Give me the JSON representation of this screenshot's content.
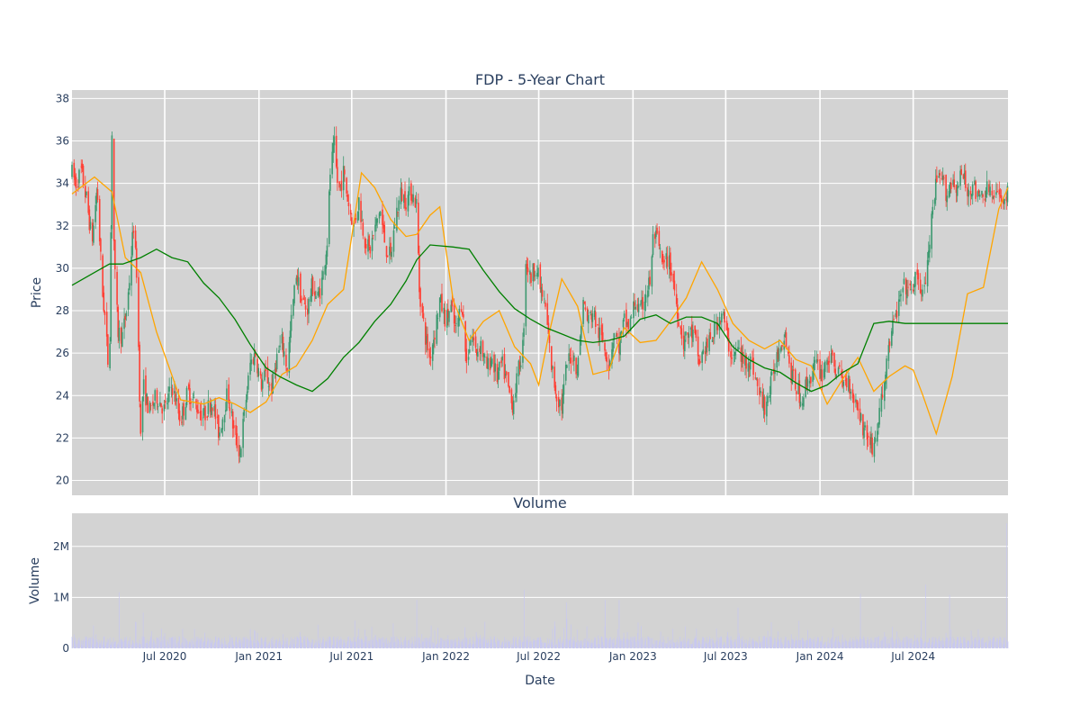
{
  "chart_data": [
    {
      "type": "candlestick",
      "title": "FDP - 5-Year Chart",
      "xlabel": "",
      "ylabel": "Price",
      "x_range": [
        "2020-01-02",
        "2025-01-02"
      ],
      "ylim": [
        19.3,
        38.4
      ],
      "y_ticks": [
        20,
        22,
        24,
        26,
        28,
        30,
        32,
        34,
        36,
        38
      ],
      "grid": true,
      "increasing_color": "#3d9970",
      "decreasing_color": "#ff4136",
      "overlays": [
        {
          "type": "line",
          "color": "#ffa500",
          "x": [
            "2020-01-02",
            "2020-02-15",
            "2020-03-20",
            "2020-04-15",
            "2020-05-15",
            "2020-06-15",
            "2020-08-01",
            "2020-09-15",
            "2020-10-15",
            "2020-11-15",
            "2020-12-15",
            "2021-01-15",
            "2021-02-15",
            "2021-03-15",
            "2021-04-15",
            "2021-05-15",
            "2021-06-15",
            "2021-07-01",
            "2021-07-20",
            "2021-08-15",
            "2021-09-15",
            "2021-10-15",
            "2021-11-05",
            "2021-12-01",
            "2021-12-20",
            "2022-01-15",
            "2022-02-15",
            "2022-03-15",
            "2022-04-15",
            "2022-05-15",
            "2022-06-15",
            "2022-07-01",
            "2022-07-20",
            "2022-08-15",
            "2022-09-15",
            "2022-10-15",
            "2022-11-15",
            "2022-12-15",
            "2023-01-15",
            "2023-02-15",
            "2023-03-15",
            "2023-04-15",
            "2023-05-15",
            "2023-06-15",
            "2023-07-15",
            "2023-08-15",
            "2023-09-15",
            "2023-10-15",
            "2023-11-15",
            "2023-12-15",
            "2024-01-15",
            "2024-02-15",
            "2024-03-15",
            "2024-04-15",
            "2024-05-15",
            "2024-06-15",
            "2024-07-01",
            "2024-07-20",
            "2024-08-15",
            "2024-09-15",
            "2024-10-15",
            "2024-11-15",
            "2024-12-15",
            "2025-01-02"
          ],
          "values": [
            33.5,
            34.3,
            33.6,
            30.5,
            29.8,
            27.0,
            23.8,
            23.6,
            23.9,
            23.6,
            23.2,
            23.7,
            25.0,
            25.4,
            26.6,
            28.3,
            29.0,
            31.5,
            34.5,
            33.8,
            32.3,
            31.5,
            31.6,
            32.5,
            32.9,
            28.5,
            26.6,
            27.5,
            28.0,
            26.3,
            25.5,
            24.5,
            26.8,
            29.5,
            28.2,
            25.0,
            25.2,
            27.2,
            26.5,
            26.6,
            27.5,
            28.6,
            30.3,
            29.0,
            27.4,
            26.6,
            26.2,
            26.6,
            25.7,
            25.4,
            23.6,
            24.8,
            25.8,
            24.2,
            24.9,
            25.4,
            25.2,
            24.0,
            22.2,
            24.9,
            28.8,
            29.1,
            32.8,
            33.8
          ]
        },
        {
          "type": "line",
          "color": "#008000",
          "x": [
            "2020-01-02",
            "2020-02-15",
            "2020-03-15",
            "2020-04-10",
            "2020-05-15",
            "2020-06-15",
            "2020-07-15",
            "2020-08-15",
            "2020-09-15",
            "2020-10-15",
            "2020-11-15",
            "2020-12-15",
            "2021-01-15",
            "2021-02-10",
            "2021-03-15",
            "2021-04-15",
            "2021-05-15",
            "2021-06-15",
            "2021-07-15",
            "2021-08-15",
            "2021-09-15",
            "2021-10-15",
            "2021-11-05",
            "2021-12-01",
            "2022-01-15",
            "2022-02-15",
            "2022-03-15",
            "2022-04-15",
            "2022-05-15",
            "2022-06-15",
            "2022-07-15",
            "2022-08-15",
            "2022-09-15",
            "2022-10-15",
            "2022-11-15",
            "2022-12-15",
            "2023-01-15",
            "2023-02-15",
            "2023-03-15",
            "2023-04-15",
            "2023-05-15",
            "2023-06-15",
            "2023-07-15",
            "2023-08-15",
            "2023-09-15",
            "2023-10-15",
            "2023-11-15",
            "2023-12-15",
            "2024-01-15",
            "2024-02-15",
            "2024-03-15",
            "2024-04-15",
            "2024-05-15",
            "2024-06-15",
            "2024-07-15",
            "2024-08-15",
            "2024-09-15",
            "2024-10-15",
            "2024-11-15",
            "2024-12-15",
            "2025-01-02"
          ],
          "values": [
            29.2,
            29.8,
            30.2,
            30.2,
            30.5,
            30.9,
            30.5,
            30.3,
            29.3,
            28.6,
            27.6,
            26.4,
            25.3,
            24.9,
            24.5,
            24.2,
            24.8,
            25.8,
            26.5,
            27.5,
            28.3,
            29.4,
            30.4,
            31.1,
            31.0,
            30.9,
            29.9,
            28.9,
            28.1,
            27.6,
            27.2,
            26.9,
            26.6,
            26.5,
            26.6,
            26.8,
            27.6,
            27.8,
            27.4,
            27.7,
            27.7,
            27.4,
            26.3,
            25.7,
            25.3,
            25.1,
            24.6,
            24.2,
            24.5,
            25.1,
            25.5,
            27.4,
            27.5,
            27.4,
            27.4,
            27.4,
            27.4,
            27.4,
            27.4,
            27.4,
            27.4
          ]
        }
      ],
      "ohlc_path": [
        [
          "2020-01-02",
          34.5
        ],
        [
          "2020-01-10",
          34.0
        ],
        [
          "2020-01-20",
          34.6
        ],
        [
          "2020-02-01",
          33.0
        ],
        [
          "2020-02-10",
          31.2
        ],
        [
          "2020-02-20",
          33.8
        ],
        [
          "2020-03-01",
          29.0
        ],
        [
          "2020-03-08",
          27.2
        ],
        [
          "2020-03-15",
          24.5
        ],
        [
          "2020-03-20",
          36.5
        ],
        [
          "2020-03-25",
          30.0
        ],
        [
          "2020-04-01",
          27.0
        ],
        [
          "2020-04-10",
          26.8
        ],
        [
          "2020-04-20",
          28.5
        ],
        [
          "2020-05-01",
          32.0
        ],
        [
          "2020-05-08",
          29.5
        ],
        [
          "2020-05-15",
          22.0
        ],
        [
          "2020-05-20",
          24.5
        ],
        [
          "2020-06-01",
          23.2
        ],
        [
          "2020-06-15",
          24.0
        ],
        [
          "2020-07-01",
          23.3
        ],
        [
          "2020-07-15",
          24.5
        ],
        [
          "2020-08-01",
          22.8
        ],
        [
          "2020-08-15",
          24.2
        ],
        [
          "2020-09-01",
          23.5
        ],
        [
          "2020-09-15",
          23.0
        ],
        [
          "2020-10-01",
          23.8
        ],
        [
          "2020-10-15",
          22.2
        ],
        [
          "2020-11-01",
          24.2
        ],
        [
          "2020-11-15",
          22.0
        ],
        [
          "2020-11-25",
          21.3
        ],
        [
          "2020-12-05",
          23.5
        ],
        [
          "2020-12-15",
          25.5
        ],
        [
          "2020-12-25",
          26.0
        ],
        [
          "2021-01-05",
          24.5
        ],
        [
          "2021-01-15",
          25.0
        ],
        [
          "2021-01-25",
          24.2
        ],
        [
          "2021-02-05",
          25.8
        ],
        [
          "2021-02-15",
          26.5
        ],
        [
          "2021-02-25",
          25.3
        ],
        [
          "2021-03-05",
          27.5
        ],
        [
          "2021-03-15",
          29.8
        ],
        [
          "2021-03-25",
          28.5
        ],
        [
          "2021-04-05",
          28.0
        ],
        [
          "2021-04-15",
          29.2
        ],
        [
          "2021-04-25",
          28.5
        ],
        [
          "2021-05-05",
          29.5
        ],
        [
          "2021-05-15",
          31.5
        ],
        [
          "2021-05-20",
          34.5
        ],
        [
          "2021-05-28",
          35.8
        ],
        [
          "2021-06-05",
          33.5
        ],
        [
          "2021-06-15",
          34.5
        ],
        [
          "2021-06-25",
          33.0
        ],
        [
          "2021-07-05",
          32.0
        ],
        [
          "2021-07-15",
          33.2
        ],
        [
          "2021-07-25",
          31.5
        ],
        [
          "2021-08-05",
          30.8
        ],
        [
          "2021-08-15",
          31.8
        ],
        [
          "2021-08-25",
          32.8
        ],
        [
          "2021-09-05",
          31.0
        ],
        [
          "2021-09-15",
          30.5
        ],
        [
          "2021-09-25",
          32.5
        ],
        [
          "2021-10-05",
          33.5
        ],
        [
          "2021-10-15",
          33.2
        ],
        [
          "2021-10-25",
          33.6
        ],
        [
          "2021-11-05",
          33.0
        ],
        [
          "2021-11-10",
          29.0
        ],
        [
          "2021-11-20",
          27.0
        ],
        [
          "2021-11-30",
          25.8
        ],
        [
          "2021-12-10",
          27.0
        ],
        [
          "2021-12-20",
          28.5
        ],
        [
          "2022-01-01",
          27.5
        ],
        [
          "2022-01-10",
          28.2
        ],
        [
          "2022-01-20",
          27.0
        ],
        [
          "2022-02-01",
          28.5
        ],
        [
          "2022-02-10",
          25.5
        ],
        [
          "2022-02-20",
          27.0
        ],
        [
          "2022-03-01",
          26.0
        ],
        [
          "2022-03-10",
          26.5
        ],
        [
          "2022-03-20",
          25.2
        ],
        [
          "2022-04-01",
          25.8
        ],
        [
          "2022-04-10",
          24.8
        ],
        [
          "2022-04-20",
          25.5
        ],
        [
          "2022-05-01",
          24.5
        ],
        [
          "2022-05-10",
          23.5
        ],
        [
          "2022-05-20",
          24.8
        ],
        [
          "2022-06-01",
          26.5
        ],
        [
          "2022-06-05",
          30.5
        ],
        [
          "2022-06-15",
          29.5
        ],
        [
          "2022-06-25",
          30.2
        ],
        [
          "2022-07-05",
          29.0
        ],
        [
          "2022-07-15",
          28.0
        ],
        [
          "2022-07-25",
          25.5
        ],
        [
          "2022-08-05",
          24.0
        ],
        [
          "2022-08-15",
          23.5
        ],
        [
          "2022-08-25",
          25.5
        ],
        [
          "2022-09-05",
          26.0
        ],
        [
          "2022-09-15",
          25.2
        ],
        [
          "2022-09-25",
          28.5
        ],
        [
          "2022-10-05",
          27.5
        ],
        [
          "2022-10-15",
          28.0
        ],
        [
          "2022-10-25",
          27.0
        ],
        [
          "2022-11-05",
          26.5
        ],
        [
          "2022-11-15",
          25.5
        ],
        [
          "2022-11-25",
          27.0
        ],
        [
          "2022-12-05",
          26.3
        ],
        [
          "2022-12-15",
          27.5
        ],
        [
          "2022-12-25",
          27.2
        ],
        [
          "2023-01-05",
          28.5
        ],
        [
          "2023-01-15",
          27.8
        ],
        [
          "2023-01-25",
          28.8
        ],
        [
          "2023-02-05",
          29.5
        ],
        [
          "2023-02-10",
          31.8
        ],
        [
          "2023-02-20",
          31.0
        ],
        [
          "2023-03-01",
          30.0
        ],
        [
          "2023-03-10",
          30.5
        ],
        [
          "2023-03-20",
          29.5
        ],
        [
          "2023-04-01",
          27.5
        ],
        [
          "2023-04-10",
          26.5
        ],
        [
          "2023-04-20",
          27.0
        ],
        [
          "2023-05-01",
          26.8
        ],
        [
          "2023-05-10",
          25.5
        ],
        [
          "2023-05-20",
          26.2
        ],
        [
          "2023-06-01",
          26.5
        ],
        [
          "2023-06-15",
          27.5
        ],
        [
          "2023-06-25",
          28.0
        ],
        [
          "2023-07-05",
          26.5
        ],
        [
          "2023-07-15",
          25.8
        ],
        [
          "2023-07-25",
          26.2
        ],
        [
          "2023-08-05",
          25.5
        ],
        [
          "2023-08-15",
          25.8
        ],
        [
          "2023-08-25",
          25.2
        ],
        [
          "2023-09-05",
          24.0
        ],
        [
          "2023-09-15",
          23.5
        ],
        [
          "2023-09-25",
          24.2
        ],
        [
          "2023-10-05",
          25.5
        ],
        [
          "2023-10-15",
          26.5
        ],
        [
          "2023-10-25",
          27.0
        ],
        [
          "2023-11-05",
          25.0
        ],
        [
          "2023-11-15",
          24.5
        ],
        [
          "2023-11-25",
          23.8
        ],
        [
          "2023-12-05",
          24.5
        ],
        [
          "2023-12-15",
          25.0
        ],
        [
          "2023-12-25",
          25.5
        ],
        [
          "2024-01-05",
          25.0
        ],
        [
          "2024-01-15",
          25.8
        ],
        [
          "2024-01-25",
          25.5
        ],
        [
          "2024-02-05",
          25.2
        ],
        [
          "2024-02-15",
          24.5
        ],
        [
          "2024-02-25",
          24.8
        ],
        [
          "2024-03-05",
          24.0
        ],
        [
          "2024-03-15",
          23.5
        ],
        [
          "2024-03-25",
          22.5
        ],
        [
          "2024-04-05",
          22.0
        ],
        [
          "2024-04-15",
          21.5
        ],
        [
          "2024-04-25",
          23.0
        ],
        [
          "2024-05-05",
          24.5
        ],
        [
          "2024-05-15",
          26.5
        ],
        [
          "2024-05-25",
          27.5
        ],
        [
          "2024-06-05",
          28.5
        ],
        [
          "2024-06-15",
          29.2
        ],
        [
          "2024-06-25",
          28.8
        ],
        [
          "2024-07-05",
          29.5
        ],
        [
          "2024-07-15",
          29.0
        ],
        [
          "2024-07-25",
          29.2
        ],
        [
          "2024-08-05",
          32.0
        ],
        [
          "2024-08-15",
          34.0
        ],
        [
          "2024-08-25",
          34.2
        ],
        [
          "2024-09-05",
          33.5
        ],
        [
          "2024-09-15",
          34.2
        ],
        [
          "2024-09-25",
          33.8
        ],
        [
          "2024-10-05",
          34.5
        ],
        [
          "2024-10-15",
          33.5
        ],
        [
          "2024-10-25",
          34.0
        ],
        [
          "2024-11-05",
          33.2
        ],
        [
          "2024-11-15",
          33.5
        ],
        [
          "2024-11-25",
          33.8
        ],
        [
          "2024-12-05",
          33.2
        ],
        [
          "2024-12-15",
          33.5
        ],
        [
          "2024-12-25",
          33.3
        ],
        [
          "2025-01-02",
          33.5
        ]
      ]
    },
    {
      "type": "bar",
      "title": "Volume",
      "xlabel": "Date",
      "ylabel": "Volume",
      "x_range": [
        "2020-01-02",
        "2025-01-02"
      ],
      "ylim": [
        0,
        2650000
      ],
      "y_ticks": [
        0,
        1000000,
        2000000
      ],
      "y_tick_labels": [
        "0",
        "1M",
        "2M"
      ],
      "x_tick_labels": [
        "Jul 2020",
        "Jan 2021",
        "Jul 2021",
        "Jan 2022",
        "Jul 2022",
        "Jan 2023",
        "Jul 2023",
        "Jan 2024",
        "Jul 2024"
      ],
      "x_tick_dates": [
        "2020-07-01",
        "2021-01-01",
        "2021-07-01",
        "2022-01-01",
        "2022-07-01",
        "2023-01-01",
        "2023-07-01",
        "2024-01-01",
        "2024-07-01"
      ],
      "bar_color": "#c8c8f0",
      "grid": true,
      "volume_spikes": [
        [
          "2020-04-03",
          1100000
        ],
        [
          "2020-05-20",
          700000
        ],
        [
          "2021-11-05",
          950000
        ],
        [
          "2022-06-03",
          1150000
        ],
        [
          "2022-08-24",
          900000
        ],
        [
          "2022-11-08",
          950000
        ],
        [
          "2022-12-05",
          950000
        ],
        [
          "2023-07-25",
          800000
        ],
        [
          "2024-03-20",
          1070000
        ],
        [
          "2024-07-25",
          1250000
        ],
        [
          "2024-09-10",
          1050000
        ],
        [
          "2024-12-30",
          2450000
        ]
      ]
    }
  ]
}
